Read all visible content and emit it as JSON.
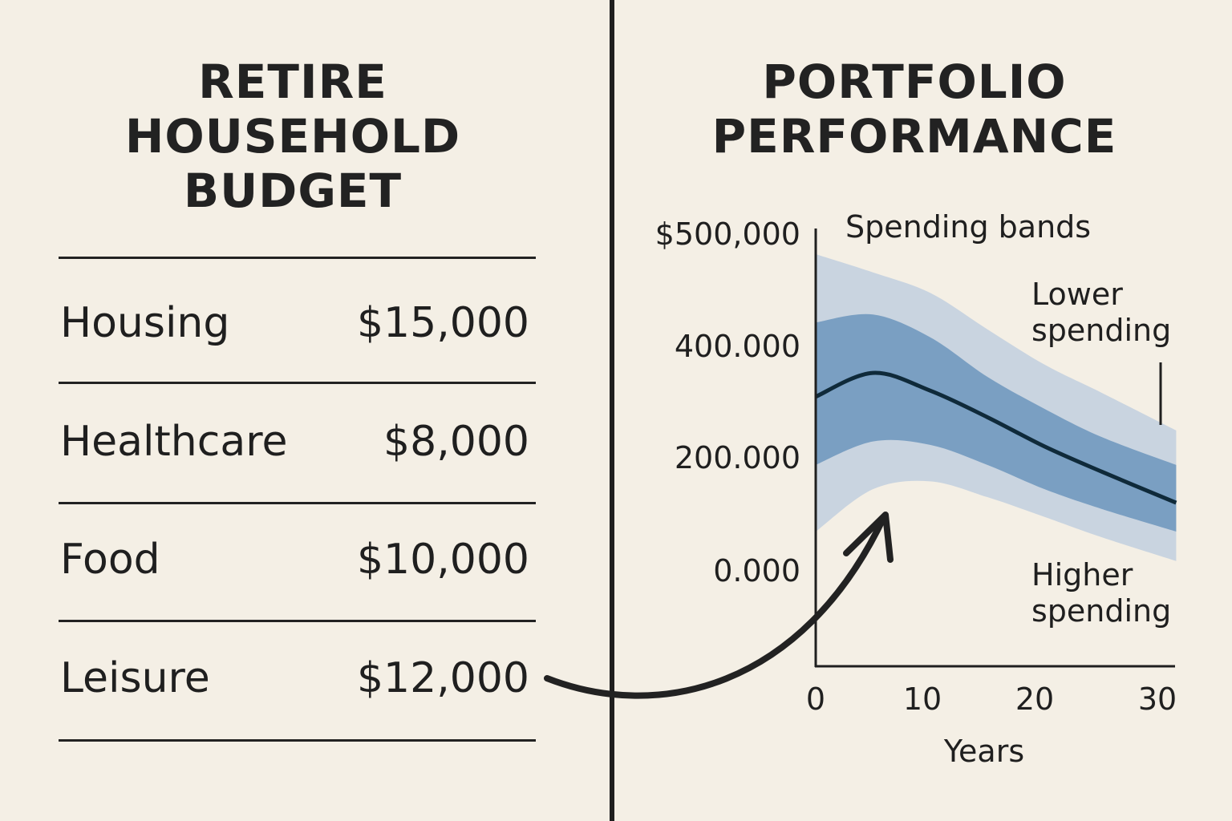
{
  "budget": {
    "title_lines": [
      "RETIRE",
      "HOUSEHOLD",
      "BUDGET"
    ],
    "items": [
      {
        "label": "Housing",
        "amount": "$15,000"
      },
      {
        "label": "Healthcare",
        "amount": "$8,000"
      },
      {
        "label": "Food",
        "amount": "$10,000"
      },
      {
        "label": "Leisure",
        "amount": "$12,000"
      }
    ]
  },
  "portfolio": {
    "title_lines": [
      "PORTFOLIO",
      "PERFORMANCE"
    ]
  },
  "chart_data": {
    "type": "area",
    "title": "Spending bands",
    "xlabel": "Years",
    "ylabel": "",
    "xlim": [
      0,
      31.5
    ],
    "x_ticks": [
      0,
      10,
      20,
      30
    ],
    "x_tick_labels": [
      "0",
      "10",
      "20",
      "30"
    ],
    "y_ticks": [
      0,
      200000,
      400000,
      500000
    ],
    "y_tick_labels": [
      "0.000",
      "200.000",
      "400.000",
      "$500,000"
    ],
    "grid": false,
    "annotations": [
      "Lower spending",
      "Higher spending"
    ],
    "x": [
      0,
      5,
      10,
      15,
      20,
      25,
      31.5
    ],
    "bands": [
      {
        "level": "outer",
        "upper": [
          481000,
          465000,
          447000,
          415000,
          367000,
          316000,
          248000
        ],
        "lower": [
          68000,
          143000,
          157000,
          129000,
          94000,
          58000,
          16000
        ]
      },
      {
        "level": "inner",
        "upper": [
          421000,
          428000,
          408000,
          345000,
          287000,
          236000,
          186000
        ],
        "lower": [
          186000,
          228000,
          222000,
          186000,
          143000,
          108000,
          68000
        ]
      }
    ],
    "median": [
      309000,
      352000,
      320000,
      272000,
      219000,
      174000,
      119000
    ],
    "colors": {
      "outer": "#c9d4e0",
      "inner": "#7a9fc2",
      "median": "#0f2a3a",
      "axis": "#1f1f1f"
    }
  }
}
